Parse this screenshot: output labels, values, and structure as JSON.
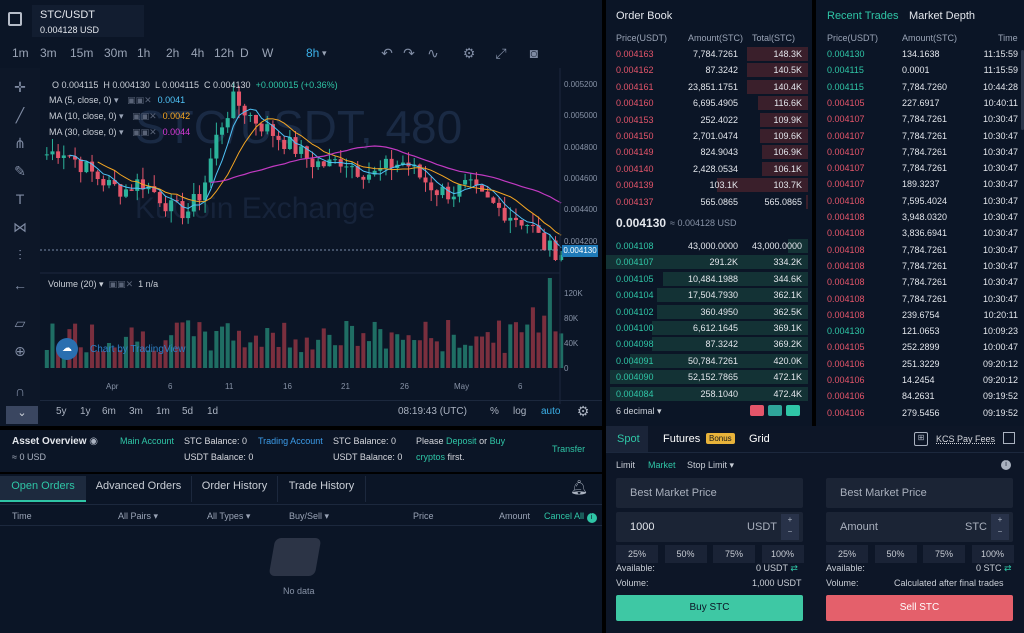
{
  "pair": {
    "symbol": "STC/USDT",
    "price": "0.004128 USD"
  },
  "toolbar": {
    "timeframes": [
      "1m",
      "3m",
      "15m",
      "30m",
      "1h",
      "2h",
      "4h",
      "12h",
      "D",
      "W",
      "8h"
    ],
    "active_timeframe": "8h"
  },
  "chart": {
    "ohlc": {
      "o": "O 0.004115",
      "h": "H 0.004130",
      "l": "L 0.004115",
      "c": "C 0.004130",
      "chg": "+0.000015 (+0.36%)"
    },
    "indicators": [
      {
        "label": "MA (5, close, 0)",
        "value": "0.0041",
        "color": "#4fc3f7"
      },
      {
        "label": "MA (10, close, 0)",
        "value": "0.0042",
        "color": "#f5a623"
      },
      {
        "label": "MA (30, close, 0)",
        "value": "0.0044",
        "color": "#d93ad8"
      }
    ],
    "watermark_pair": "STC/USDT, 480",
    "watermark_exchange": "KuCoin Exchange",
    "price_axis": [
      "0.005200",
      "0.005000",
      "0.004800",
      "0.004600",
      "0.004400",
      "0.004200"
    ],
    "current_price_tag": "0.004130",
    "volume_label": "Volume (20)",
    "volume_value": "1  n/a",
    "volume_axis": [
      "120K",
      "80K",
      "40K",
      "0"
    ],
    "date_axis": [
      "Apr",
      "6",
      "11",
      "16",
      "21",
      "26",
      "May",
      "6"
    ],
    "tradingview": "Chart by TradingView",
    "ranges": [
      "5y",
      "1y",
      "6m",
      "3m",
      "1m",
      "5d",
      "1d"
    ],
    "time": "08:19:43 (UTC)",
    "pct": "%",
    "log": "log",
    "auto": "auto"
  },
  "orderbook": {
    "title": "Order Book",
    "headers": {
      "price": "Price(USDT)",
      "amount": "Amount(STC)",
      "total": "Total(STC)"
    },
    "asks": [
      {
        "p": "0.004163",
        "a": "7,784.7261",
        "t": "148.3K",
        "d": 0.3
      },
      {
        "p": "0.004162",
        "a": "87.3242",
        "t": "140.5K",
        "d": 0.3
      },
      {
        "p": "0.004161",
        "a": "23,851.1751",
        "t": "140.4K",
        "d": 0.3
      },
      {
        "p": "0.004160",
        "a": "6,695.4905",
        "t": "116.6K",
        "d": 0.25
      },
      {
        "p": "0.004153",
        "a": "252.4022",
        "t": "109.9K",
        "d": 0.24
      },
      {
        "p": "0.004150",
        "a": "2,701.0474",
        "t": "109.6K",
        "d": 0.24
      },
      {
        "p": "0.004149",
        "a": "824.9043",
        "t": "106.9K",
        "d": 0.23
      },
      {
        "p": "0.004140",
        "a": "2,428.0534",
        "t": "106.1K",
        "d": 0.23
      },
      {
        "p": "0.004139",
        "a": "103.1K",
        "t": "103.7K",
        "d": 0.45
      },
      {
        "p": "0.004137",
        "a": "565.0865",
        "t": "565.0865",
        "d": 0.01
      }
    ],
    "mid_price": "0.004130",
    "mid_ref": "≈ 0.004128 USD",
    "bids": [
      {
        "p": "0.004108",
        "a": "43,000.0000",
        "t": "43,000.0000",
        "d": 0.1
      },
      {
        "p": "0.004107",
        "a": "291.2K",
        "t": "334.2K",
        "d": 1.0
      },
      {
        "p": "0.004105",
        "a": "10,484.1988",
        "t": "344.6K",
        "d": 0.72
      },
      {
        "p": "0.004104",
        "a": "17,504.7930",
        "t": "362.1K",
        "d": 0.75
      },
      {
        "p": "0.004102",
        "a": "360.4950",
        "t": "362.5K",
        "d": 0.75
      },
      {
        "p": "0.004100",
        "a": "6,612.1645",
        "t": "369.1K",
        "d": 0.77
      },
      {
        "p": "0.004098",
        "a": "87.3242",
        "t": "369.2K",
        "d": 0.77
      },
      {
        "p": "0.004091",
        "a": "50,784.7261",
        "t": "420.0K",
        "d": 0.88
      },
      {
        "p": "0.004090",
        "a": "52,152.7865",
        "t": "472.1K",
        "d": 0.98
      },
      {
        "p": "0.004084",
        "a": "258.1040",
        "t": "472.4K",
        "d": 0.98
      }
    ],
    "decimal": "6 decimal"
  },
  "trades": {
    "tab_recent": "Recent Trades",
    "tab_depth": "Market Depth",
    "headers": {
      "price": "Price(USDT)",
      "amount": "Amount(STC)",
      "time": "Time"
    },
    "rows": [
      {
        "p": "0.004130",
        "a": "134.1638",
        "t": "11:15:59",
        "s": "g"
      },
      {
        "p": "0.004115",
        "a": "0.0001",
        "t": "11:15:59",
        "s": "g"
      },
      {
        "p": "0.004115",
        "a": "7,784.7260",
        "t": "10:44:28",
        "s": "g"
      },
      {
        "p": "0.004105",
        "a": "227.6917",
        "t": "10:40:11",
        "s": "r"
      },
      {
        "p": "0.004107",
        "a": "7,784.7261",
        "t": "10:30:47",
        "s": "r"
      },
      {
        "p": "0.004107",
        "a": "7,784.7261",
        "t": "10:30:47",
        "s": "r"
      },
      {
        "p": "0.004107",
        "a": "7,784.7261",
        "t": "10:30:47",
        "s": "r"
      },
      {
        "p": "0.004107",
        "a": "7,784.7261",
        "t": "10:30:47",
        "s": "r"
      },
      {
        "p": "0.004107",
        "a": "189.3237",
        "t": "10:30:47",
        "s": "r"
      },
      {
        "p": "0.004108",
        "a": "7,595.4024",
        "t": "10:30:47",
        "s": "r"
      },
      {
        "p": "0.004108",
        "a": "3,948.0320",
        "t": "10:30:47",
        "s": "r"
      },
      {
        "p": "0.004108",
        "a": "3,836.6941",
        "t": "10:30:47",
        "s": "r"
      },
      {
        "p": "0.004108",
        "a": "7,784.7261",
        "t": "10:30:47",
        "s": "r"
      },
      {
        "p": "0.004108",
        "a": "7,784.7261",
        "t": "10:30:47",
        "s": "r"
      },
      {
        "p": "0.004108",
        "a": "7,784.7261",
        "t": "10:30:47",
        "s": "r"
      },
      {
        "p": "0.004108",
        "a": "7,784.7261",
        "t": "10:30:47",
        "s": "r"
      },
      {
        "p": "0.004108",
        "a": "239.6754",
        "t": "10:20:11",
        "s": "r"
      },
      {
        "p": "0.004130",
        "a": "121.0653",
        "t": "10:09:23",
        "s": "g"
      },
      {
        "p": "0.004105",
        "a": "252.2899",
        "t": "10:00:47",
        "s": "r"
      },
      {
        "p": "0.004106",
        "a": "251.3229",
        "t": "09:20:12",
        "s": "r"
      },
      {
        "p": "0.004106",
        "a": "14.2454",
        "t": "09:20:12",
        "s": "r"
      },
      {
        "p": "0.004106",
        "a": "84.2631",
        "t": "09:19:52",
        "s": "r"
      },
      {
        "p": "0.004106",
        "a": "279.5456",
        "t": "09:19:52",
        "s": "r"
      }
    ]
  },
  "asset": {
    "title": "Asset Overview",
    "usd": "≈ 0 USD",
    "main": "Main Account",
    "main_stc": "STC Balance: 0",
    "main_usdt": "USDT Balance: 0",
    "trading": "Trading Account",
    "trading_stc": "STC Balance: 0",
    "trading_usdt": "USDT Balance: 0",
    "please": "Please",
    "deposit": "Deposit",
    "or": "or",
    "buy": "Buy",
    "cryptos": "cryptos",
    "first": "first.",
    "transfer": "Transfer"
  },
  "orders": {
    "tabs": [
      "Open Orders",
      "Advanced Orders",
      "Order History",
      "Trade History"
    ],
    "cols": {
      "time": "Time",
      "pairs": "All Pairs",
      "types": "All Types",
      "side": "Buy/Sell",
      "price": "Price",
      "amount": "Amount",
      "cancel": "Cancel All"
    },
    "empty": "No data"
  },
  "trade": {
    "tabs": {
      "spot": "Spot",
      "futures": "Futures",
      "bonus": "Bonus",
      "grid": "Grid"
    },
    "kcs": "KCS Pay Fees",
    "types": {
      "limit": "Limit",
      "market": "Market",
      "stop": "Stop Limit"
    },
    "buy": {
      "price": "Best Market Price",
      "amount": "1000",
      "unit": "USDT",
      "available_label": "Available:",
      "available": "0 USDT",
      "volume_label": "Volume:",
      "volume": "1,000 USDT",
      "button": "Buy STC"
    },
    "sell": {
      "price": "Best Market Price",
      "amount_ph": "Amount",
      "unit": "STC",
      "available_label": "Available:",
      "available": "0 STC",
      "volume_label": "Volume:",
      "volume": "Calculated after final trades",
      "button": "Sell STC"
    },
    "pcts": [
      "25%",
      "50%",
      "75%",
      "100%"
    ]
  }
}
